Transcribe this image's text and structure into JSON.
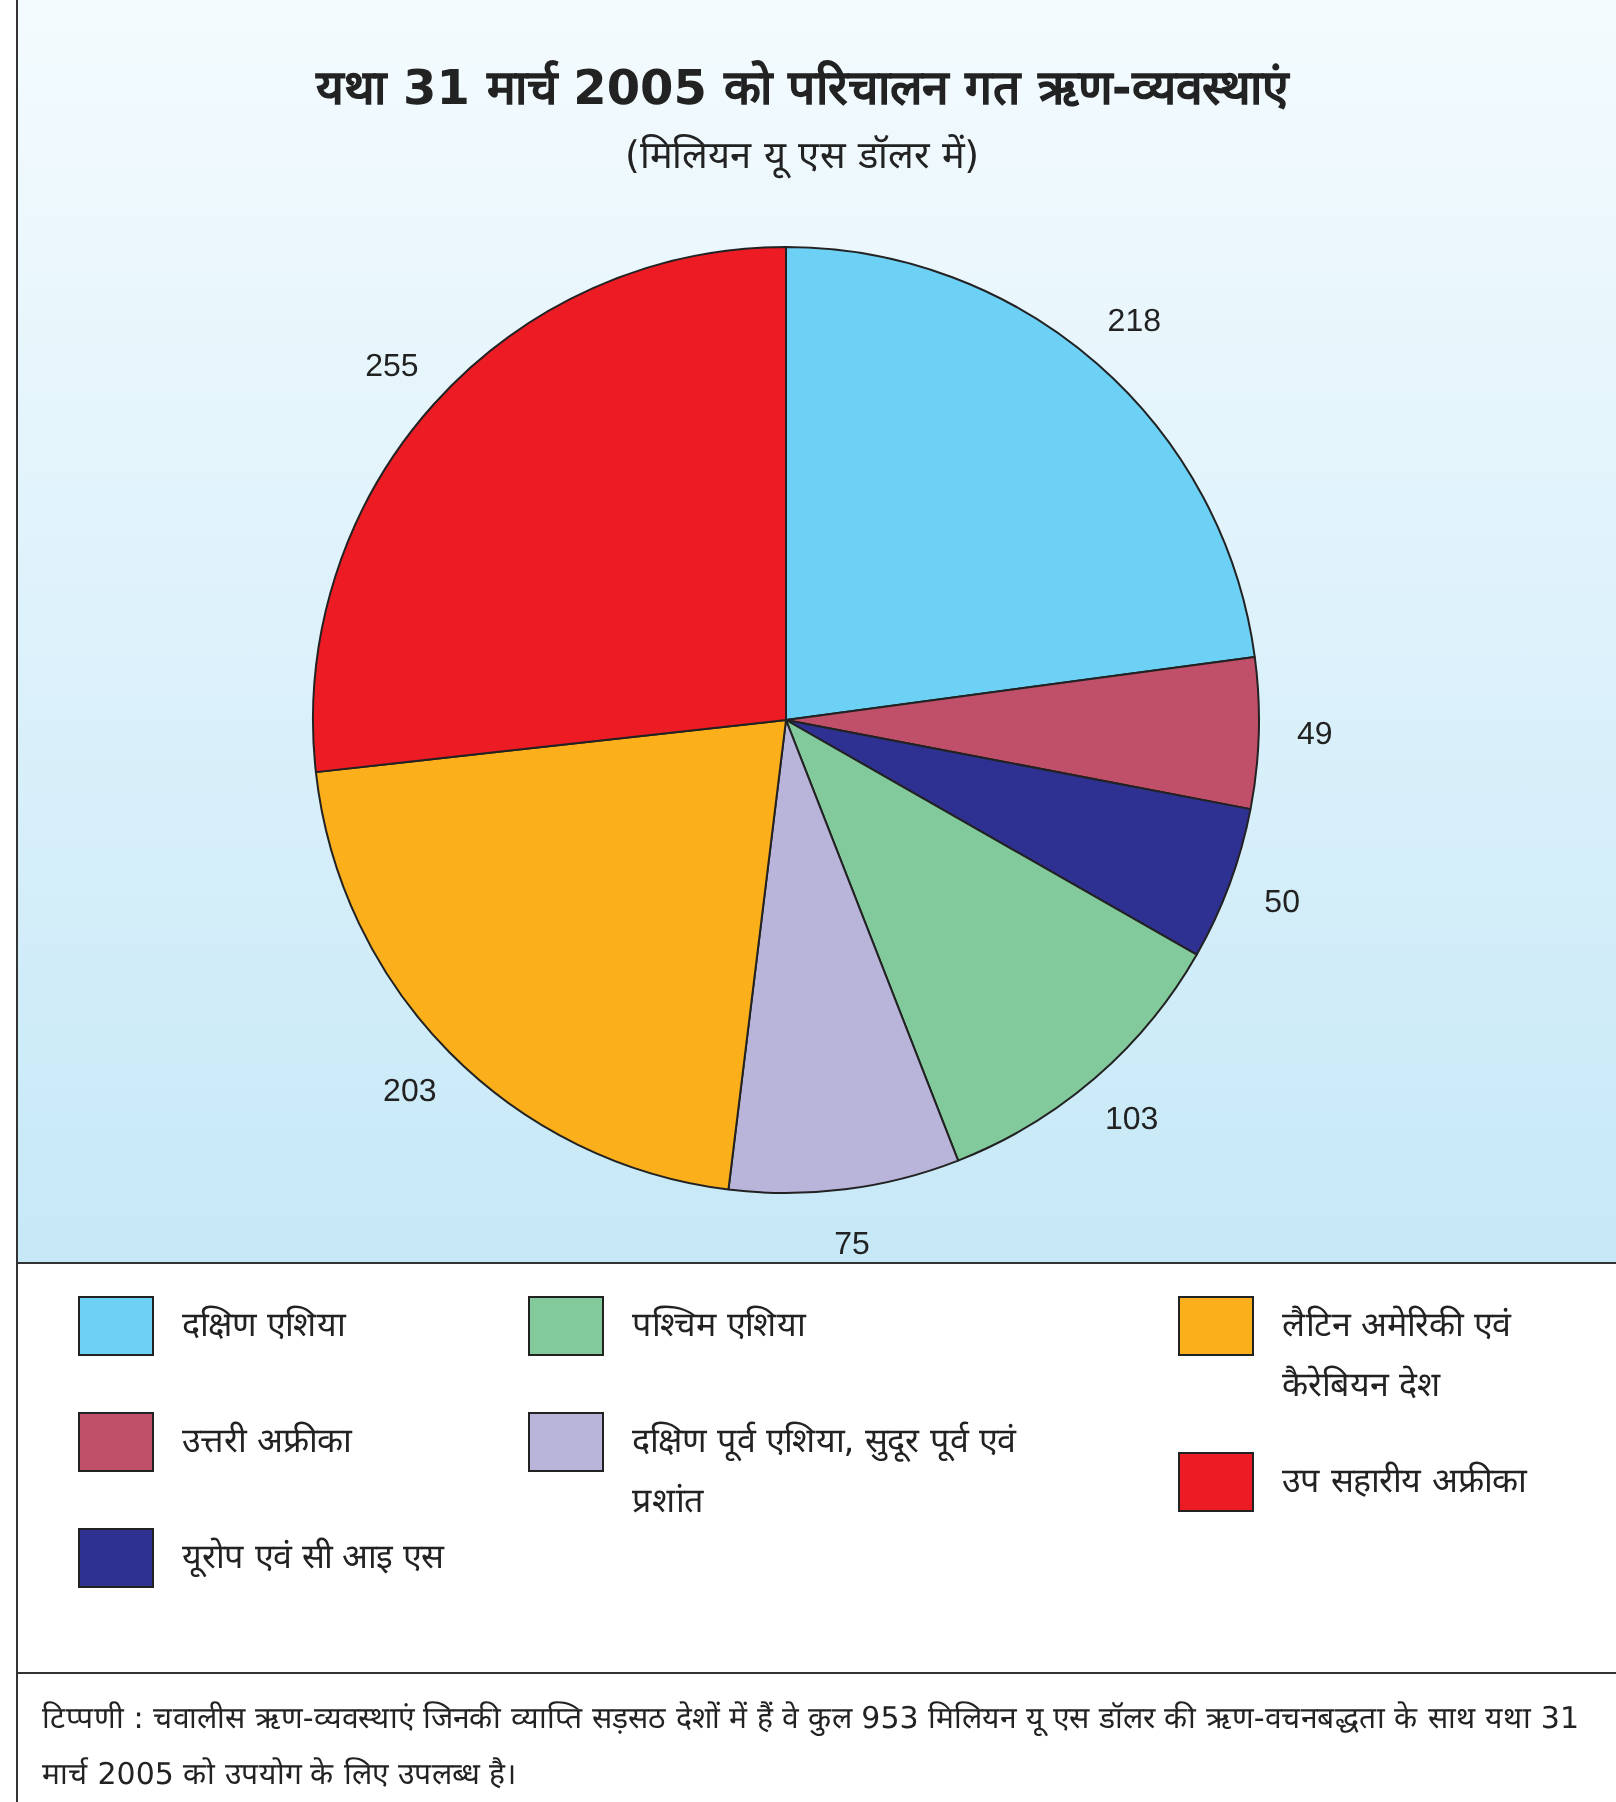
{
  "chart_data": {
    "type": "pie",
    "title": "यथा 31 मार्च 2005 को परिचालन गत ऋण-व्यवस्थाएं",
    "subtitle": "(मिलियन यू एस डॉलर में)",
    "categories": [
      "दक्षिण एशिया",
      "उत्तरी अफ्रीका",
      "यूरोप एवं सी आइ  एस",
      "पश्चिम एशिया",
      "दक्षिण पूर्व एशिया, सुदूर पूर्व एवं प्रशांत",
      "लैटिन अमेरिकी एवं कैरेबियन देश",
      "उप सहारीय अफ्रीका"
    ],
    "values": [
      218,
      49,
      50,
      103,
      75,
      203,
      255
    ],
    "colors": [
      "#6dd0f5",
      "#c0506a",
      "#2e3192",
      "#82ca9c",
      "#b9b5da",
      "#fbb01b",
      "#ed1c24"
    ],
    "data_labels": true,
    "legend": "bottom",
    "annotations": [
      "टिप्पणी : चवालीस ऋण-व्यवस्थाएं जिनकी व्याप्ति सड़सठ देशों में हैं वे कुल 953 मिलियन यू एस डॉलर की ऋण-वचनबद्धता के साथ यथा 31 मार्च 2005 को उपयोग के लिए उपलब्ध है।"
    ]
  }
}
